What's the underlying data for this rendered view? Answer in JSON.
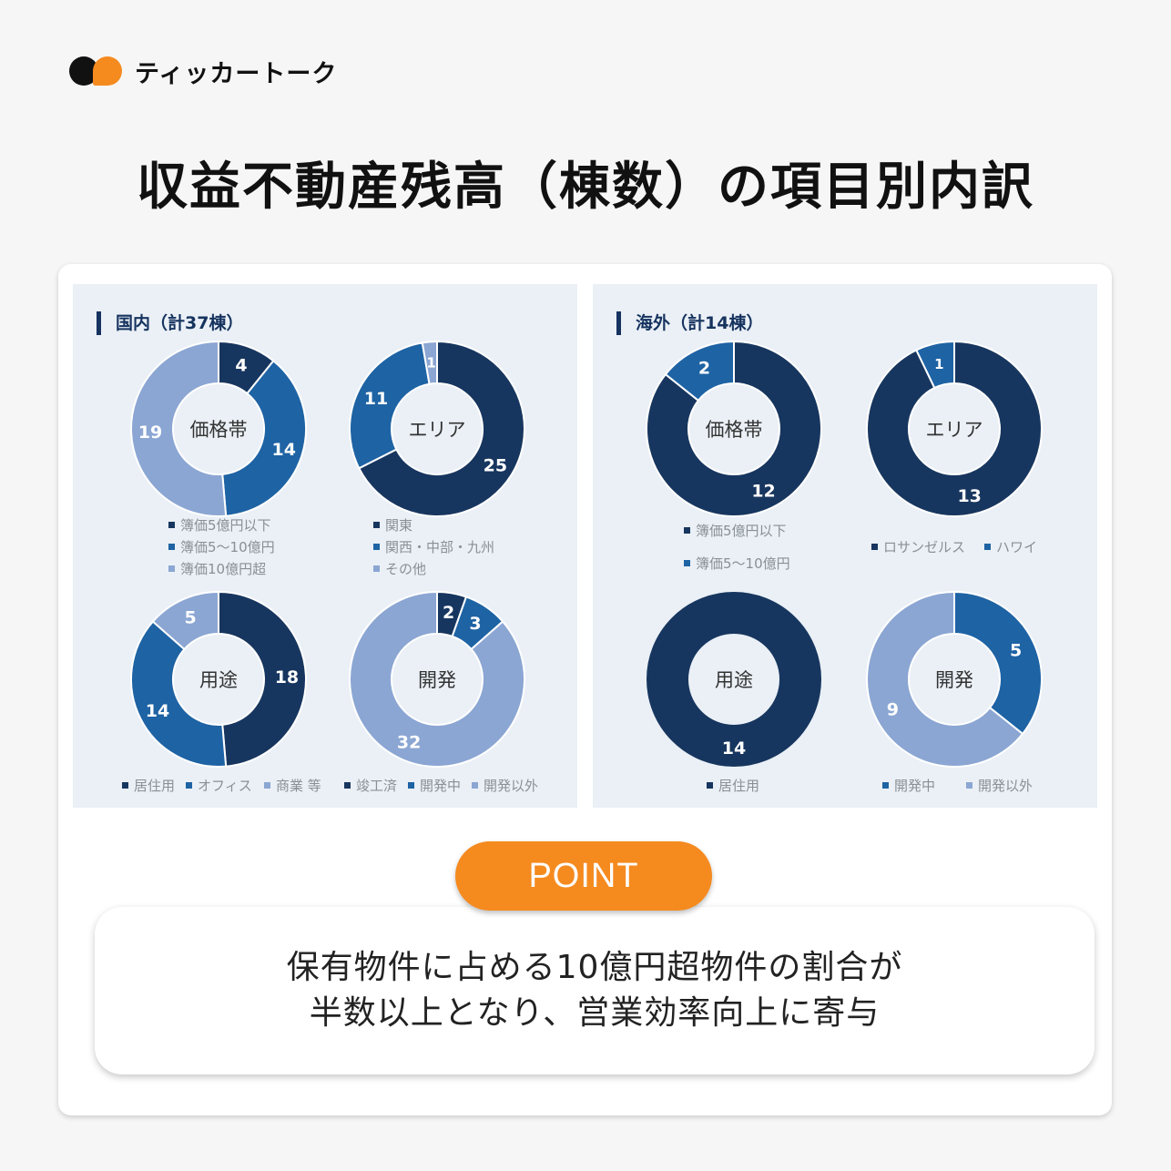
{
  "brand": {
    "name": "ティッカートーク",
    "colors": {
      "black": "#111111",
      "orange": "#f58a1f"
    }
  },
  "title": "収益不動産残高（棟数）の項目別内訳",
  "panels": [
    {
      "header": "国内（計37棟）"
    },
    {
      "header": "海外（計14棟）"
    }
  ],
  "colors": {
    "dark": "#17365f",
    "mid": "#1e63a4",
    "light": "#8ba6d3",
    "panel_bg": "#eaf0f6",
    "accent": "#f58a1f"
  },
  "chart_data": [
    {
      "type": "pie",
      "panel": "国内（計37棟）",
      "center_label": "価格帯",
      "categories": [
        "簿価5億円以下",
        "簿価5〜10億円",
        "簿価10億円超"
      ],
      "values": [
        4,
        14,
        19
      ]
    },
    {
      "type": "pie",
      "panel": "国内（計37棟）",
      "center_label": "エリア",
      "categories": [
        "関東",
        "関西・中部・九州",
        "その他"
      ],
      "values": [
        25,
        11,
        1
      ]
    },
    {
      "type": "pie",
      "panel": "国内（計37棟）",
      "center_label": "用途",
      "categories": [
        "居住用",
        "オフィス",
        "商業 等"
      ],
      "values": [
        18,
        14,
        5
      ]
    },
    {
      "type": "pie",
      "panel": "国内（計37棟）",
      "center_label": "開発",
      "categories": [
        "竣工済",
        "開発中",
        "開発以外"
      ],
      "values": [
        2,
        3,
        32
      ]
    },
    {
      "type": "pie",
      "panel": "海外（計14棟）",
      "center_label": "価格帯",
      "categories": [
        "簿価5億円以下",
        "簿価5〜10億円"
      ],
      "values": [
        12,
        2
      ]
    },
    {
      "type": "pie",
      "panel": "海外（計14棟）",
      "center_label": "エリア",
      "categories": [
        "ロサンゼルス",
        "ハワイ"
      ],
      "values": [
        13,
        1
      ]
    },
    {
      "type": "pie",
      "panel": "海外（計14棟）",
      "center_label": "用途",
      "categories": [
        "居住用"
      ],
      "values": [
        14
      ]
    },
    {
      "type": "pie",
      "panel": "海外（計14棟）",
      "center_label": "開発",
      "categories": [
        "開発中",
        "開発以外"
      ],
      "values": [
        5,
        9
      ]
    }
  ],
  "point": {
    "label": "POINT",
    "lines": [
      "保有物件に占める10億円超物件の割合が",
      "半数以上となり、営業効率向上に寄与"
    ]
  }
}
